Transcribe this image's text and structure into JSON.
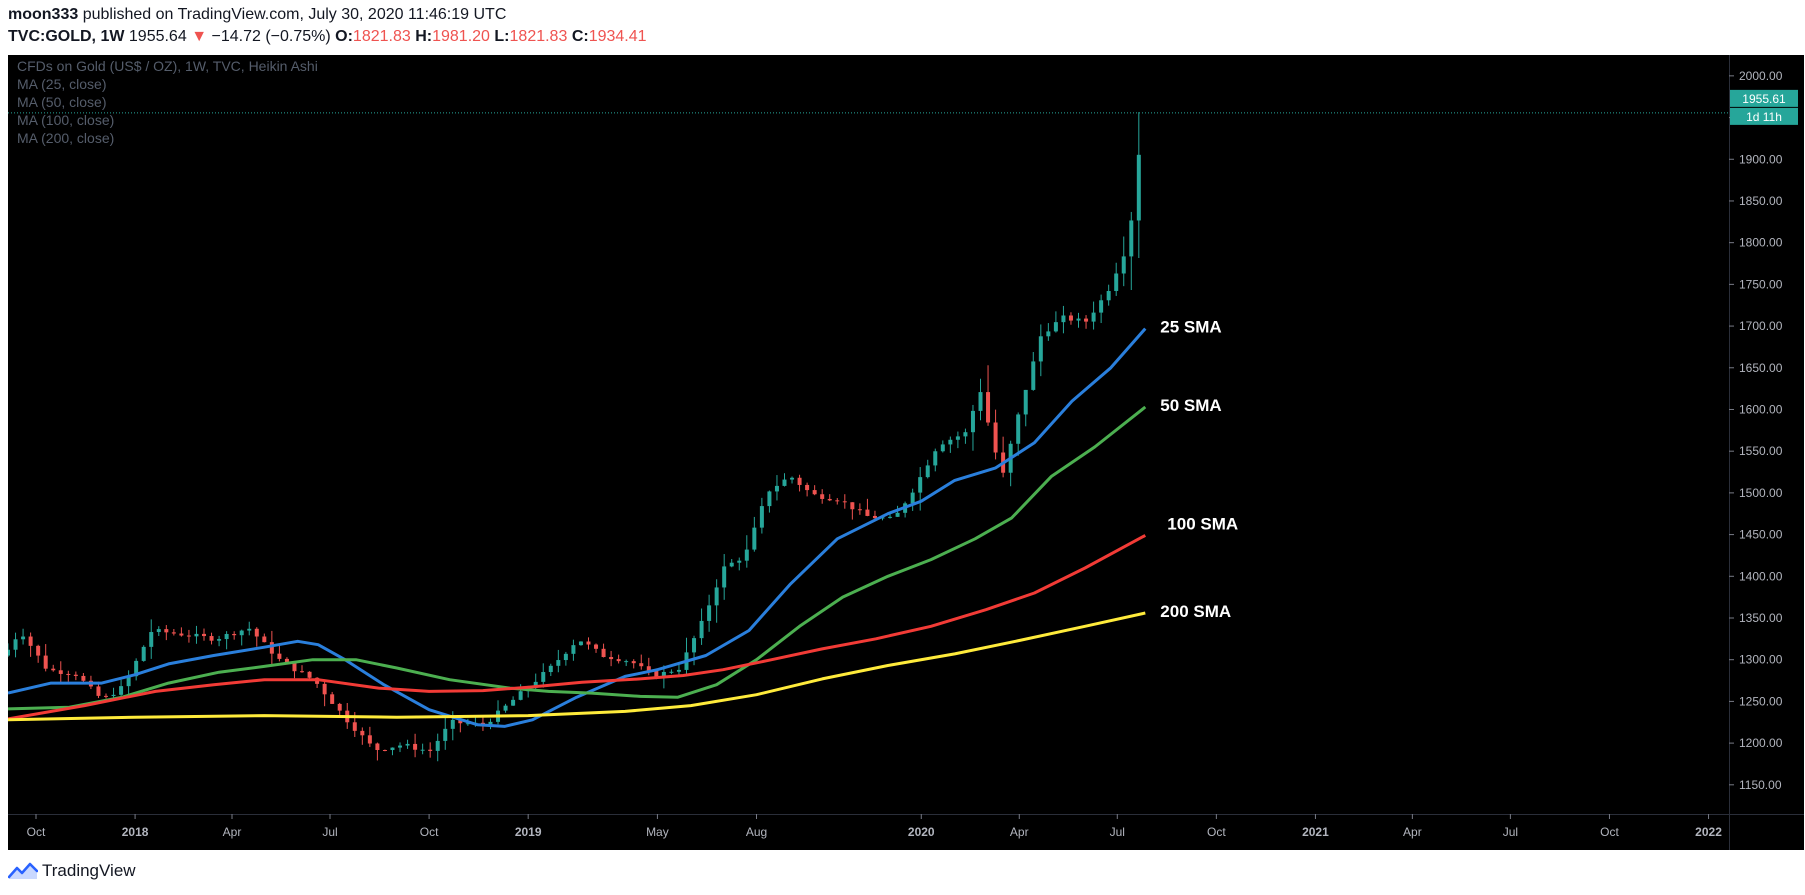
{
  "header": {
    "author": "moon333",
    "published_text": "published on TradingView.com, July 30, 2020 11:46:19 UTC",
    "symbol_interval": "TVC:GOLD, 1W",
    "last_price": "1955.64",
    "change": "−14.72 (−0.75%)",
    "o_label": "O:",
    "o_value": "1821.83",
    "h_label": "H:",
    "h_value": "1981.20",
    "l_label": "L:",
    "l_value": "1821.83",
    "c_label": "C:",
    "c_value": "1934.41"
  },
  "legend": {
    "title": "CFDs on Gold (US$ / OZ), 1W, TVC, Heikin Ashi",
    "items": [
      "MA (25, close)",
      "MA (50, close)",
      "MA (100, close)",
      "MA (200, close)"
    ]
  },
  "price_tag": {
    "value": "1955.61",
    "countdown": "1d 11h"
  },
  "footer": {
    "brand": "TradingView"
  },
  "colors": {
    "background": "#000000",
    "up": "#26a69a",
    "down": "#ef5350",
    "sma25": "#2a7fdc",
    "sma50": "#4caf50",
    "sma100": "#f23b36",
    "sma200": "#ffeb3b"
  },
  "chart_data": {
    "type": "line",
    "title": "CFDs on Gold (US$ / OZ), 1W, TVC, Heikin Ashi",
    "ylim": [
      1115,
      2025
    ],
    "y_ticks": [
      1150,
      1200,
      1250,
      1300,
      1350,
      1400,
      1450,
      1500,
      1550,
      1600,
      1650,
      1700,
      1750,
      1800,
      1850,
      1900,
      1950,
      2000
    ],
    "y_tick_labels": [
      "1150.00",
      "1200.00",
      "1250.00",
      "1300.00",
      "1350.00",
      "1400.00",
      "1450.00",
      "1500.00",
      "1550.00",
      "1600.00",
      "1650.00",
      "1700.00",
      "1750.00",
      "1800.00",
      "1850.00",
      "1900.00",
      "1950.00",
      "2000.00"
    ],
    "xlim": [
      "2017-09-05",
      "2022-01-20"
    ],
    "x_ticks": [
      {
        "label": "Oct",
        "date": "2017-10-01"
      },
      {
        "label": "2018",
        "date": "2018-01-01"
      },
      {
        "label": "Apr",
        "date": "2018-04-01"
      },
      {
        "label": "Jul",
        "date": "2018-07-01"
      },
      {
        "label": "Oct",
        "date": "2018-10-01"
      },
      {
        "label": "2019",
        "date": "2019-01-01"
      },
      {
        "label": "May",
        "date": "2019-05-01"
      },
      {
        "label": "Aug",
        "date": "2019-08-01"
      },
      {
        "label": "2020",
        "date": "2020-01-01"
      },
      {
        "label": "Apr",
        "date": "2020-04-01"
      },
      {
        "label": "Jul",
        "date": "2020-07-01"
      },
      {
        "label": "Oct",
        "date": "2020-10-01"
      },
      {
        "label": "2021",
        "date": "2021-01-01"
      },
      {
        "label": "Apr",
        "date": "2021-04-01"
      },
      {
        "label": "Jul",
        "date": "2021-07-01"
      },
      {
        "label": "Oct",
        "date": "2021-10-01"
      },
      {
        "label": "2022",
        "date": "2022-01-01"
      }
    ],
    "last_price_line": 1955.61,
    "series": [
      {
        "name": "25 SMA",
        "color": "#2a7fdc",
        "points": [
          [
            "2017-09-05",
            1260
          ],
          [
            "2017-10-15",
            1272
          ],
          [
            "2017-12-01",
            1272
          ],
          [
            "2018-01-01",
            1282
          ],
          [
            "2018-02-01",
            1295
          ],
          [
            "2018-03-15",
            1305
          ],
          [
            "2018-05-01",
            1315
          ],
          [
            "2018-06-01",
            1322
          ],
          [
            "2018-06-20",
            1318
          ],
          [
            "2018-07-15",
            1300
          ],
          [
            "2018-08-20",
            1270
          ],
          [
            "2018-10-01",
            1240
          ],
          [
            "2018-11-15",
            1222
          ],
          [
            "2018-12-10",
            1220
          ],
          [
            "2019-01-05",
            1228
          ],
          [
            "2019-02-15",
            1255
          ],
          [
            "2019-04-01",
            1280
          ],
          [
            "2019-05-01",
            1288
          ],
          [
            "2019-06-15",
            1305
          ],
          [
            "2019-07-25",
            1335
          ],
          [
            "2019-09-01",
            1390
          ],
          [
            "2019-10-15",
            1445
          ],
          [
            "2019-12-01",
            1475
          ],
          [
            "2020-01-01",
            1490
          ],
          [
            "2020-02-01",
            1515
          ],
          [
            "2020-03-10",
            1530
          ],
          [
            "2020-04-15",
            1560
          ],
          [
            "2020-05-20",
            1610
          ],
          [
            "2020-06-25",
            1650
          ],
          [
            "2020-07-27",
            1697
          ]
        ]
      },
      {
        "name": "50 SMA",
        "color": "#4caf50",
        "points": [
          [
            "2017-09-05",
            1241
          ],
          [
            "2017-11-01",
            1243
          ],
          [
            "2017-12-20",
            1255
          ],
          [
            "2018-02-01",
            1272
          ],
          [
            "2018-03-20",
            1285
          ],
          [
            "2018-05-01",
            1292
          ],
          [
            "2018-06-15",
            1300
          ],
          [
            "2018-07-25",
            1300
          ],
          [
            "2018-09-01",
            1290
          ],
          [
            "2018-10-20",
            1276
          ],
          [
            "2018-12-15",
            1266
          ],
          [
            "2019-01-20",
            1262
          ],
          [
            "2019-03-01",
            1260
          ],
          [
            "2019-04-15",
            1256
          ],
          [
            "2019-05-20",
            1255
          ],
          [
            "2019-06-25",
            1270
          ],
          [
            "2019-08-01",
            1300
          ],
          [
            "2019-09-10",
            1340
          ],
          [
            "2019-10-20",
            1375
          ],
          [
            "2019-12-01",
            1400
          ],
          [
            "2020-01-10",
            1420
          ],
          [
            "2020-02-20",
            1445
          ],
          [
            "2020-03-25",
            1470
          ],
          [
            "2020-05-01",
            1520
          ],
          [
            "2020-06-10",
            1555
          ],
          [
            "2020-07-27",
            1603
          ]
        ]
      },
      {
        "name": "100 SMA",
        "color": "#f23b36",
        "points": [
          [
            "2017-09-05",
            1229
          ],
          [
            "2017-11-15",
            1245
          ],
          [
            "2018-01-20",
            1262
          ],
          [
            "2018-03-15",
            1270
          ],
          [
            "2018-05-01",
            1276
          ],
          [
            "2018-06-20",
            1276
          ],
          [
            "2018-08-15",
            1266
          ],
          [
            "2018-10-01",
            1262
          ],
          [
            "2018-11-20",
            1263
          ],
          [
            "2019-01-01",
            1267
          ],
          [
            "2019-02-20",
            1273
          ],
          [
            "2019-04-15",
            1277
          ],
          [
            "2019-05-25",
            1281
          ],
          [
            "2019-07-01",
            1288
          ],
          [
            "2019-08-15",
            1300
          ],
          [
            "2019-10-01",
            1313
          ],
          [
            "2019-11-20",
            1325
          ],
          [
            "2020-01-10",
            1340
          ],
          [
            "2020-03-01",
            1360
          ],
          [
            "2020-04-15",
            1380
          ],
          [
            "2020-06-01",
            1410
          ],
          [
            "2020-07-27",
            1449
          ]
        ]
      },
      {
        "name": "200 SMA",
        "color": "#ffeb3b",
        "points": [
          [
            "2017-09-05",
            1228
          ],
          [
            "2018-01-01",
            1231
          ],
          [
            "2018-05-01",
            1233
          ],
          [
            "2018-09-01",
            1231
          ],
          [
            "2019-01-01",
            1233
          ],
          [
            "2019-04-01",
            1238
          ],
          [
            "2019-06-01",
            1245
          ],
          [
            "2019-08-01",
            1258
          ],
          [
            "2019-10-01",
            1277
          ],
          [
            "2019-12-01",
            1293
          ],
          [
            "2020-02-01",
            1307
          ],
          [
            "2020-04-01",
            1323
          ],
          [
            "2020-06-01",
            1340
          ],
          [
            "2020-07-27",
            1356
          ]
        ]
      }
    ],
    "heikin_ashi_anchors": [
      [
        "2017-09-05",
        1305
      ],
      [
        "2017-09-20",
        1335
      ],
      [
        "2017-10-15",
        1288
      ],
      [
        "2017-11-10",
        1283
      ],
      [
        "2017-12-05",
        1252
      ],
      [
        "2017-12-25",
        1268
      ],
      [
        "2018-01-20",
        1335
      ],
      [
        "2018-02-20",
        1330
      ],
      [
        "2018-03-20",
        1325
      ],
      [
        "2018-04-20",
        1338
      ],
      [
        "2018-05-20",
        1298
      ],
      [
        "2018-06-20",
        1275
      ],
      [
        "2018-07-20",
        1228
      ],
      [
        "2018-08-15",
        1192
      ],
      [
        "2018-09-10",
        1198
      ],
      [
        "2018-10-05",
        1190
      ],
      [
        "2018-10-25",
        1225
      ],
      [
        "2018-11-25",
        1222
      ],
      [
        "2018-12-20",
        1250
      ],
      [
        "2019-01-25",
        1290
      ],
      [
        "2019-02-20",
        1325
      ],
      [
        "2019-03-15",
        1305
      ],
      [
        "2019-04-10",
        1298
      ],
      [
        "2019-05-01",
        1280
      ],
      [
        "2019-05-25",
        1290
      ],
      [
        "2019-06-15",
        1345
      ],
      [
        "2019-07-05",
        1410
      ],
      [
        "2019-07-25",
        1425
      ],
      [
        "2019-08-15",
        1502
      ],
      [
        "2019-09-05",
        1520
      ],
      [
        "2019-09-25",
        1498
      ],
      [
        "2019-10-20",
        1492
      ],
      [
        "2019-11-15",
        1472
      ],
      [
        "2019-12-10",
        1468
      ],
      [
        "2019-12-30",
        1508
      ],
      [
        "2020-01-20",
        1558
      ],
      [
        "2020-02-15",
        1572
      ],
      [
        "2020-02-28",
        1625
      ],
      [
        "2020-03-12",
        1555
      ],
      [
        "2020-03-20",
        1520
      ],
      [
        "2020-04-05",
        1600
      ],
      [
        "2020-04-25",
        1690
      ],
      [
        "2020-05-15",
        1710
      ],
      [
        "2020-06-05",
        1705
      ],
      [
        "2020-06-25",
        1740
      ],
      [
        "2020-07-15",
        1800
      ],
      [
        "2020-07-27",
        1935
      ]
    ],
    "annotations": [
      {
        "text": "25 SMA",
        "series": "25 SMA"
      },
      {
        "text": "50 SMA",
        "series": "50 SMA"
      },
      {
        "text": "100 SMA",
        "series": "100 SMA"
      },
      {
        "text": "200 SMA",
        "series": "200 SMA"
      }
    ],
    "grid": false
  }
}
